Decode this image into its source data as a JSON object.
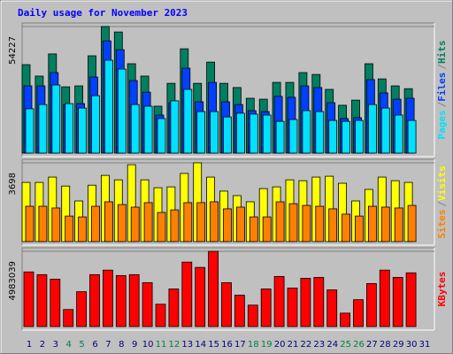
{
  "chart_data": [
    {
      "type": "bar",
      "title": "Daily usage for November 2023",
      "ylim": [
        0,
        54227
      ],
      "yticks": [
        54227
      ],
      "legend_separator": "/",
      "series": [
        {
          "name": "Hits",
          "color": "#008060",
          "values": [
            37900,
            33000,
            42500,
            28400,
            28800,
            41700,
            54227,
            51900,
            38300,
            33000,
            20100,
            29900,
            44700,
            29900,
            39000,
            29900,
            28100,
            23500,
            23100,
            30300,
            30300,
            34500,
            33700,
            27300,
            20500,
            22700,
            38300,
            31800,
            28800,
            27600,
            null
          ]
        },
        {
          "name": "Files",
          "color": "#0040ff",
          "values": [
            28800,
            28800,
            34500,
            20800,
            21200,
            32600,
            48100,
            44300,
            31100,
            26100,
            16300,
            21600,
            36400,
            22000,
            30300,
            22000,
            20800,
            18200,
            17800,
            24300,
            23900,
            28800,
            28100,
            21600,
            14800,
            15200,
            31500,
            25800,
            23100,
            23500,
            null
          ]
        },
        {
          "name": "Pages",
          "color": "#00e0ff",
          "values": [
            19000,
            20800,
            29200,
            21200,
            19300,
            24600,
            39800,
            36000,
            20800,
            20100,
            14800,
            22400,
            27300,
            17800,
            17800,
            15500,
            17100,
            16700,
            16300,
            13600,
            14400,
            18200,
            17800,
            14000,
            13600,
            14000,
            20800,
            19300,
            16300,
            14000,
            null
          ]
        }
      ]
    },
    {
      "type": "bar",
      "ylim": [
        0,
        3698
      ],
      "yticks": [
        3698
      ],
      "legend_separator": "/",
      "series": [
        {
          "name": "Visits",
          "color": "#ffff00",
          "values": [
            2780,
            2780,
            3030,
            2610,
            1910,
            2650,
            3110,
            2900,
            3610,
            2900,
            2530,
            2570,
            3200,
            3698,
            3030,
            2370,
            2160,
            1870,
            2490,
            2570,
            2900,
            2860,
            3030,
            3070,
            2740,
            1910,
            2450,
            3030,
            2860,
            2780,
            null
          ]
        },
        {
          "name": "Sites",
          "color": "#ff8000",
          "values": [
            1660,
            1660,
            1580,
            1200,
            1160,
            1660,
            1870,
            1740,
            1620,
            1830,
            1370,
            1490,
            1830,
            1830,
            1870,
            1540,
            1620,
            1160,
            1160,
            1870,
            1780,
            1700,
            1660,
            1540,
            1290,
            1200,
            1660,
            1620,
            1580,
            1700,
            null
          ]
        }
      ]
    },
    {
      "type": "bar",
      "ylim": [
        0,
        4983039
      ],
      "yticks": [
        4983039
      ],
      "categories": [
        "1",
        "2",
        "3",
        "4",
        "5",
        "6",
        "7",
        "8",
        "9",
        "10",
        "11",
        "12",
        "13",
        "14",
        "15",
        "16",
        "17",
        "18",
        "19",
        "20",
        "21",
        "22",
        "23",
        "24",
        "25",
        "26",
        "27",
        "28",
        "29",
        "30",
        "31"
      ],
      "category_colors": [
        "#000080",
        "#000080",
        "#000080",
        "#008040",
        "#008040",
        "#000080",
        "#000080",
        "#000080",
        "#000080",
        "#000080",
        "#008040",
        "#008040",
        "#000080",
        "#000080",
        "#000080",
        "#000080",
        "#000080",
        "#008040",
        "#008040",
        "#000080",
        "#000080",
        "#000080",
        "#000080",
        "#000080",
        "#008040",
        "#008040",
        "#000080",
        "#000080",
        "#000080",
        "#000080",
        "#000080"
      ],
      "series": [
        {
          "name": "KBytes",
          "color": "#ff0000",
          "values": [
            3620000,
            3440000,
            3140000,
            1130000,
            2310000,
            3440000,
            3740000,
            3380000,
            3440000,
            2910000,
            1480000,
            2490000,
            4270000,
            3920000,
            4983039,
            2910000,
            2080000,
            1420000,
            2490000,
            3320000,
            2550000,
            3200000,
            3260000,
            2430000,
            890000,
            1780000,
            2850000,
            3740000,
            3260000,
            3560000,
            null
          ]
        }
      ]
    }
  ]
}
